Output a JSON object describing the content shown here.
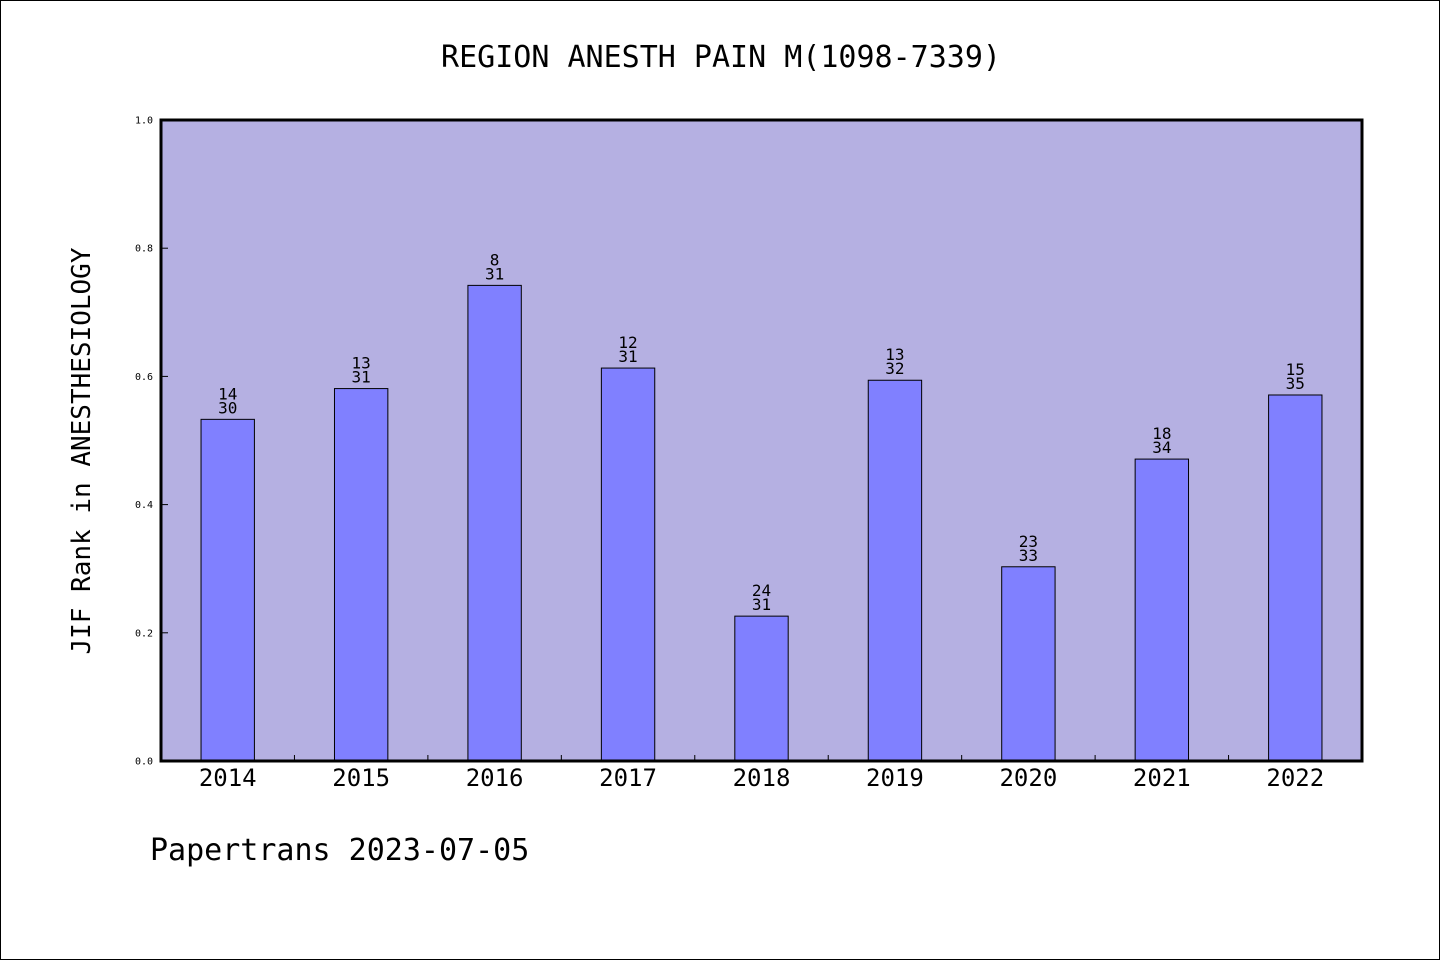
{
  "chart_data": {
    "type": "bar",
    "title": "REGION ANESTH PAIN M(1098-7339)",
    "ylabel": "JIF Rank in ANESTHESIOLOGY",
    "xlabel": "",
    "ylim": [
      0,
      1.0
    ],
    "yticks": [
      "0.0",
      "0.2",
      "0.4",
      "0.6",
      "0.8",
      "1.0"
    ],
    "categories": [
      "2014",
      "2015",
      "2016",
      "2017",
      "2018",
      "2019",
      "2020",
      "2021",
      "2022"
    ],
    "values": [
      0.533,
      0.581,
      0.742,
      0.613,
      0.226,
      0.594,
      0.303,
      0.471,
      0.571
    ],
    "rank_labels": [
      [
        "14",
        "30"
      ],
      [
        "13",
        "31"
      ],
      [
        "8",
        "31"
      ],
      [
        "12",
        "31"
      ],
      [
        "24",
        "31"
      ],
      [
        "13",
        "32"
      ],
      [
        "23",
        "33"
      ],
      [
        "18",
        "34"
      ],
      [
        "15",
        "35"
      ]
    ],
    "grid": false,
    "colors": {
      "plot_background": "#b5b0e2",
      "bar_fill": "#8080ff",
      "bar_stroke": "#000000"
    }
  },
  "footer": {
    "text": "Papertrans 2023-07-05"
  }
}
